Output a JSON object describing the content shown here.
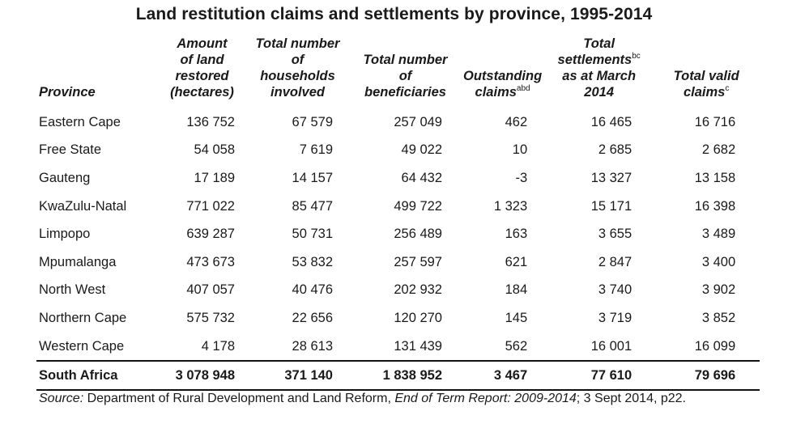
{
  "title": "Land restitution claims and settlements by province, 1995-2014",
  "headers": {
    "province": "Province",
    "land": [
      "Amount",
      "of land",
      "restored",
      "(hectares)"
    ],
    "households": [
      "Total number",
      "of",
      "households",
      "involved"
    ],
    "beneficiaries": [
      "Total number",
      "of",
      "beneficiaries"
    ],
    "outstanding": [
      "Outstanding",
      "claims"
    ],
    "outstanding_sup": "abd",
    "settlements": [
      "Total",
      "settlements",
      "as at March",
      "2014"
    ],
    "settlements_sup": "bc",
    "valid": [
      "Total valid",
      "claims"
    ],
    "valid_sup": "c"
  },
  "rows": [
    {
      "province": "Eastern Cape",
      "land": "136 752",
      "households": "67 579",
      "beneficiaries": "257 049",
      "outstanding": "462",
      "settlements": "16 465",
      "valid": "16 716"
    },
    {
      "province": "Free State",
      "land": "54 058",
      "households": "7 619",
      "beneficiaries": "49 022",
      "outstanding": "10",
      "settlements": "2 685",
      "valid": "2 682"
    },
    {
      "province": "Gauteng",
      "land": "17 189",
      "households": "14 157",
      "beneficiaries": "64 432",
      "outstanding": "-3",
      "settlements": "13 327",
      "valid": "13 158"
    },
    {
      "province": "KwaZulu-Natal",
      "land": "771 022",
      "households": "85 477",
      "beneficiaries": "499 722",
      "outstanding": "1 323",
      "settlements": "15 171",
      "valid": "16 398"
    },
    {
      "province": "Limpopo",
      "land": "639 287",
      "households": "50 731",
      "beneficiaries": "256 489",
      "outstanding": "163",
      "settlements": "3 655",
      "valid": "3 489"
    },
    {
      "province": "Mpumalanga",
      "land": "473 673",
      "households": "53 832",
      "beneficiaries": "257 597",
      "outstanding": "621",
      "settlements": "2 847",
      "valid": "3 400"
    },
    {
      "province": "North West",
      "land": "407 057",
      "households": "40 476",
      "beneficiaries": "202 932",
      "outstanding": "184",
      "settlements": "3 740",
      "valid": "3 902"
    },
    {
      "province": "Northern Cape",
      "land": "575 732",
      "households": "22 656",
      "beneficiaries": "120 270",
      "outstanding": "145",
      "settlements": "3 719",
      "valid": "3 852"
    },
    {
      "province": "Western Cape",
      "land": "4 178",
      "households": "28 613",
      "beneficiaries": "131 439",
      "outstanding": "562",
      "settlements": "16 001",
      "valid": "16 099"
    }
  ],
  "total": {
    "province": "South Africa",
    "land": "3 078 948",
    "households": "371 140",
    "beneficiaries": "1 838 952",
    "outstanding": "3 467",
    "settlements": "77 610",
    "valid": "79 696"
  },
  "source": {
    "label": "Source:",
    "text1": " Department of Rural Development and Land Reform, ",
    "report": "End of Term Report: 2009-2014",
    "text2": "; 3 Sept 2014, p22."
  }
}
